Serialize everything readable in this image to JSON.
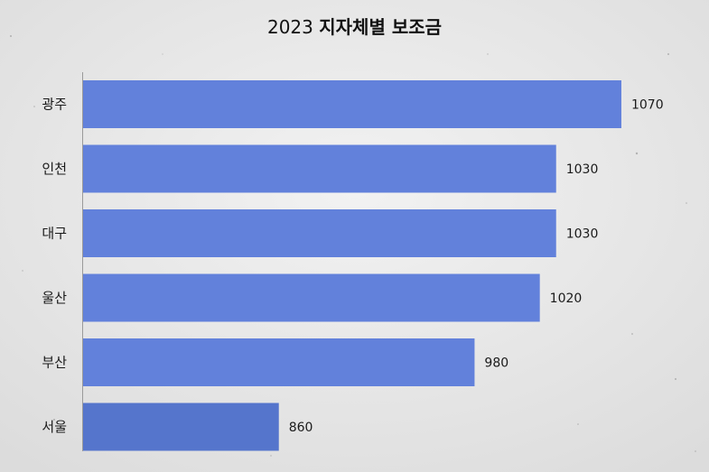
{
  "chart_data": {
    "type": "bar",
    "orientation": "horizontal",
    "title_prefix": "2023",
    "title_main": "지자체별 보조금",
    "categories": [
      "광주",
      "인천",
      "대구",
      "울산",
      "부산",
      "서울"
    ],
    "values": [
      1070,
      1030,
      1030,
      1020,
      980,
      860
    ],
    "bar_color": "#6281db",
    "bar_color_dark": "#5575cc",
    "xlim": [
      740,
      1075
    ],
    "grid": false,
    "legend": "none",
    "data_labels": true
  }
}
